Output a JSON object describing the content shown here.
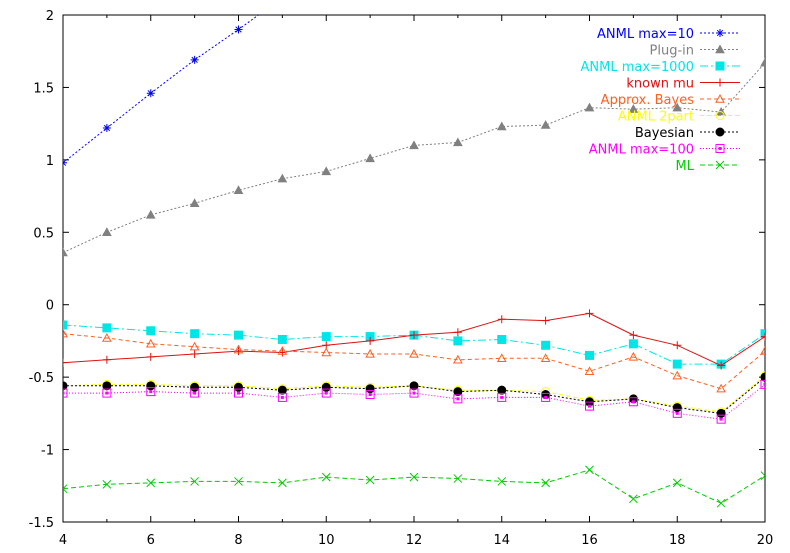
{
  "chart_data": {
    "type": "line",
    "title": "",
    "xlabel": "",
    "ylabel": "",
    "xlim": [
      4,
      20
    ],
    "ylim": [
      -1.5,
      2
    ],
    "x_ticks": [
      4,
      6,
      8,
      10,
      12,
      14,
      16,
      18,
      20
    ],
    "y_ticks": [
      -1.5,
      -1,
      -0.5,
      0,
      0.5,
      1,
      1.5,
      2
    ],
    "x_tick_labels": [
      "4",
      "6",
      "8",
      "10",
      "12",
      "14",
      "16",
      "18",
      "20"
    ],
    "y_tick_labels": [
      "-1.5",
      "-1",
      "-0.5",
      "0",
      "0.5",
      "1",
      "1.5",
      "2"
    ],
    "grid": false,
    "legend_position": "top-right",
    "series": [
      {
        "name": "ANML max=10",
        "color": "#0000ff",
        "marker": "asterisk",
        "dash": "2,2",
        "x": [
          4,
          5,
          6,
          7,
          8,
          9
        ],
        "y": [
          0.98,
          1.22,
          1.46,
          1.69,
          1.9,
          2.12
        ]
      },
      {
        "name": "Plug-in",
        "color": "#808080",
        "marker": "triangle",
        "dash": "2,2",
        "x": [
          4,
          5,
          6,
          7,
          8,
          9,
          10,
          11,
          12,
          13,
          14,
          15,
          16,
          17,
          18,
          19,
          20
        ],
        "y": [
          0.36,
          0.5,
          0.62,
          0.7,
          0.79,
          0.87,
          0.92,
          1.01,
          1.1,
          1.12,
          1.23,
          1.24,
          1.36,
          1.35,
          1.36,
          1.33,
          1.67
        ]
      },
      {
        "name": "ANML max=1000",
        "color": "#00e6e6",
        "marker": "square-filled",
        "dash": "8,3,2,3",
        "x": [
          4,
          5,
          6,
          7,
          8,
          9,
          10,
          11,
          12,
          13,
          14,
          15,
          16,
          17,
          18,
          19,
          20
        ],
        "y": [
          -0.14,
          -0.16,
          -0.18,
          -0.2,
          -0.21,
          -0.24,
          -0.22,
          -0.22,
          -0.21,
          -0.25,
          -0.24,
          -0.28,
          -0.35,
          -0.27,
          -0.41,
          -0.41,
          -0.2
        ]
      },
      {
        "name": "known mu",
        "color": "#e01010",
        "marker": "plus",
        "dash": "",
        "x": [
          4,
          5,
          6,
          7,
          8,
          9,
          10,
          11,
          12,
          13,
          14,
          15,
          16,
          17,
          18,
          19,
          20
        ],
        "y": [
          -0.4,
          -0.38,
          -0.36,
          -0.34,
          -0.32,
          -0.33,
          -0.28,
          -0.25,
          -0.21,
          -0.19,
          -0.1,
          -0.11,
          -0.06,
          -0.21,
          -0.28,
          -0.42,
          -0.22
        ]
      },
      {
        "name": "Approx. Bayes",
        "color": "#ff6020",
        "marker": "triangle-open",
        "dash": "4,3",
        "x": [
          4,
          5,
          6,
          7,
          8,
          9,
          10,
          11,
          12,
          13,
          14,
          15,
          16,
          17,
          18,
          19,
          20
        ],
        "y": [
          -0.2,
          -0.23,
          -0.27,
          -0.29,
          -0.31,
          -0.32,
          -0.33,
          -0.34,
          -0.34,
          -0.38,
          -0.37,
          -0.37,
          -0.46,
          -0.36,
          -0.49,
          -0.58,
          -0.32
        ]
      },
      {
        "name": "ANML 2part",
        "color": "#ffff00",
        "marker": "circle-open",
        "dash": "4,3",
        "x": [
          4,
          5,
          6,
          7,
          8,
          9,
          10,
          11,
          12,
          13,
          14,
          15,
          16,
          17,
          18,
          19,
          20
        ],
        "y": [
          -0.56,
          -0.55,
          -0.55,
          -0.56,
          -0.56,
          -0.58,
          -0.56,
          -0.57,
          -0.56,
          -0.59,
          -0.59,
          -0.6,
          -0.66,
          -0.65,
          -0.7,
          -0.74,
          -0.49
        ]
      },
      {
        "name": "Bayesian",
        "color": "#000000",
        "marker": "circle-filled",
        "dash": "2,2",
        "x": [
          4,
          5,
          6,
          7,
          8,
          9,
          10,
          11,
          12,
          13,
          14,
          15,
          16,
          17,
          18,
          19,
          20
        ],
        "y": [
          -0.56,
          -0.56,
          -0.56,
          -0.57,
          -0.57,
          -0.59,
          -0.57,
          -0.58,
          -0.56,
          -0.6,
          -0.59,
          -0.62,
          -0.67,
          -0.65,
          -0.71,
          -0.75,
          -0.5
        ]
      },
      {
        "name": "ANML max=100",
        "color": "#ff00ff",
        "marker": "square-open-dot",
        "dash": "1,2",
        "x": [
          4,
          5,
          6,
          7,
          8,
          9,
          10,
          11,
          12,
          13,
          14,
          15,
          16,
          17,
          18,
          19,
          20
        ],
        "y": [
          -0.61,
          -0.61,
          -0.6,
          -0.61,
          -0.61,
          -0.64,
          -0.61,
          -0.62,
          -0.61,
          -0.65,
          -0.64,
          -0.64,
          -0.7,
          -0.67,
          -0.75,
          -0.79,
          -0.55
        ]
      },
      {
        "name": "ML",
        "color": "#00cc00",
        "marker": "cross",
        "dash": "5,3",
        "x": [
          4,
          5,
          6,
          7,
          8,
          9,
          10,
          11,
          12,
          13,
          14,
          15,
          16,
          17,
          18,
          19,
          20
        ],
        "y": [
          -1.27,
          -1.24,
          -1.23,
          -1.22,
          -1.22,
          -1.23,
          -1.19,
          -1.21,
          -1.19,
          -1.2,
          -1.22,
          -1.23,
          -1.14,
          -1.34,
          -1.23,
          -1.37,
          -1.18
        ]
      }
    ]
  }
}
